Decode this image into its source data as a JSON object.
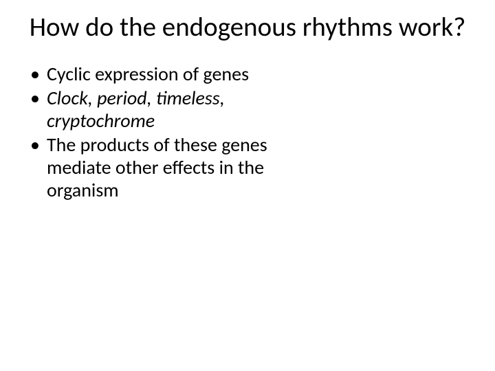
{
  "title": "How do the endogenous rhythms work?",
  "bullets": [
    {
      "text": "Cyclic expression of genes",
      "italic": false
    },
    {
      "text": "Clock, period, timeless, cryptochrome",
      "italic": true
    },
    {
      "text": "The products of these genes mediate other effects in the organism",
      "italic": false
    }
  ],
  "colors": {
    "background": "#ffffff",
    "text": "#000000"
  },
  "typography": {
    "title_fontsize": 39,
    "body_fontsize": 28,
    "font_family": "Calibri"
  }
}
